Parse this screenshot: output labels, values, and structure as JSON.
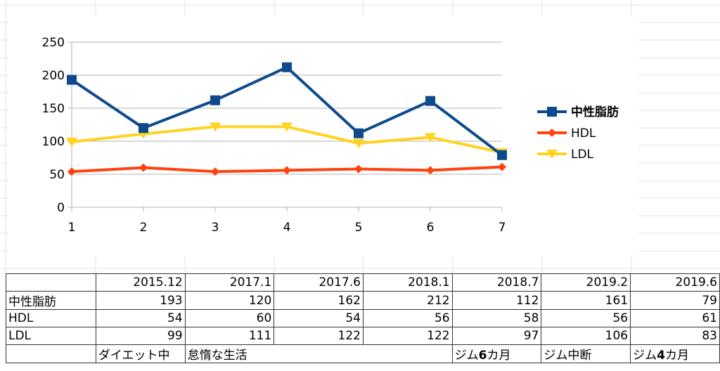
{
  "chart_data": {
    "type": "line",
    "categories": [
      "1",
      "2",
      "3",
      "4",
      "5",
      "6",
      "7"
    ],
    "ylim": [
      0,
      250
    ],
    "yticks": [
      0,
      50,
      100,
      150,
      200,
      250
    ],
    "grid": "horizontal",
    "legend_position": "right",
    "series": [
      {
        "name": "中性脂肪",
        "values": [
          193,
          120,
          162,
          212,
          112,
          161,
          79
        ],
        "color": "#0d4a8c",
        "marker": "square"
      },
      {
        "name": "HDL",
        "values": [
          54,
          60,
          54,
          56,
          58,
          56,
          61
        ],
        "color": "#ff420e",
        "marker": "diamond"
      },
      {
        "name": "LDL",
        "values": [
          99,
          111,
          122,
          122,
          97,
          106,
          83
        ],
        "color": "#ffd320",
        "marker": "triangle-down"
      }
    ]
  },
  "table": {
    "dates": [
      "2015.12",
      "2017.1",
      "2017.6",
      "2018.1",
      "2018.7",
      "2019.2",
      "2019.6"
    ],
    "rows": [
      {
        "label": "中性脂肪",
        "values": [
          "193",
          "120",
          "162",
          "212",
          "112",
          "161",
          "79"
        ]
      },
      {
        "label": "HDL",
        "values": [
          "54",
          "60",
          "54",
          "56",
          "58",
          "56",
          "61"
        ]
      },
      {
        "label": "LDL",
        "values": [
          "99",
          "111",
          "122",
          "122",
          "97",
          "106",
          "83"
        ]
      }
    ],
    "notes": {
      "diet": "ダイエット中",
      "lazy": "怠惰な生活",
      "gym6_pre": "ジム",
      "gym6_num": "6",
      "gym6_post": "カ月",
      "gym_pause": "ジム中断",
      "gym4_pre": "ジム",
      "gym4_num": "4",
      "gym4_post": "カ月"
    }
  }
}
